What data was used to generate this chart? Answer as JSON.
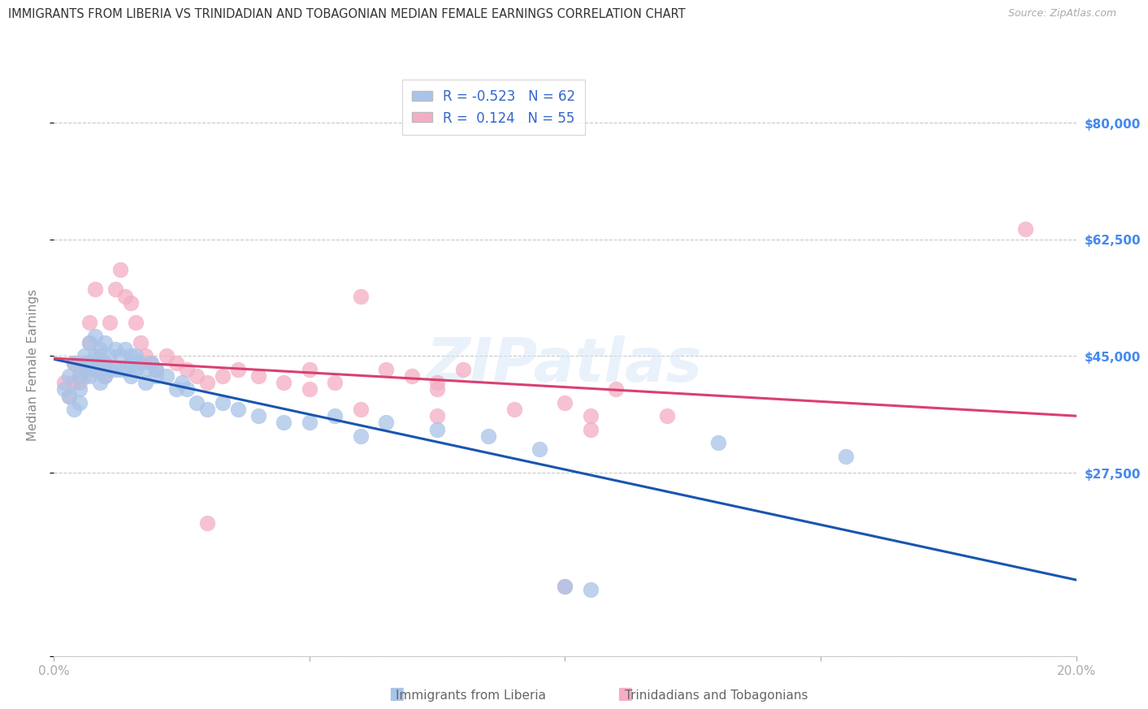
{
  "title": "IMMIGRANTS FROM LIBERIA VS TRINIDADIAN AND TOBAGONIAN MEDIAN FEMALE EARNINGS CORRELATION CHART",
  "source": "Source: ZipAtlas.com",
  "ylabel": "Median Female Earnings",
  "xlim": [
    0.0,
    0.2
  ],
  "ylim": [
    0,
    87500
  ],
  "yticks": [
    0,
    27500,
    45000,
    62500,
    80000
  ],
  "ytick_labels": [
    "",
    "$27,500",
    "$45,000",
    "$62,500",
    "$80,000"
  ],
  "xticks": [
    0.0,
    0.05,
    0.1,
    0.15,
    0.2
  ],
  "xtick_labels": [
    "0.0%",
    "",
    "",
    "",
    "20.0%"
  ],
  "series1_label": "Immigrants from Liberia",
  "series1_color": "#a8c4e8",
  "series1_edge_color": "#a8c4e8",
  "series1_line_color": "#1a55b0",
  "series1_R": "-0.523",
  "series1_N": "62",
  "series2_label": "Trinidadians and Tobagonians",
  "series2_color": "#f4aec4",
  "series2_edge_color": "#f4aec4",
  "series2_line_color": "#d94070",
  "series2_R": "0.124",
  "series2_N": "55",
  "watermark": "ZIPatlas",
  "background_color": "#ffffff",
  "grid_color": "#c8c8c8",
  "title_color": "#333333",
  "right_tick_color": "#4488ee",
  "blue_x": [
    0.002,
    0.003,
    0.003,
    0.004,
    0.004,
    0.005,
    0.005,
    0.005,
    0.006,
    0.006,
    0.007,
    0.007,
    0.007,
    0.008,
    0.008,
    0.008,
    0.009,
    0.009,
    0.009,
    0.01,
    0.01,
    0.01,
    0.011,
    0.011,
    0.012,
    0.012,
    0.013,
    0.013,
    0.014,
    0.014,
    0.015,
    0.015,
    0.015,
    0.016,
    0.016,
    0.017,
    0.018,
    0.018,
    0.019,
    0.02,
    0.02,
    0.022,
    0.024,
    0.025,
    0.026,
    0.028,
    0.03,
    0.033,
    0.036,
    0.04,
    0.045,
    0.05,
    0.055,
    0.06,
    0.065,
    0.075,
    0.085,
    0.095,
    0.13,
    0.155,
    0.1,
    0.105
  ],
  "blue_y": [
    40000,
    39000,
    42000,
    37000,
    44000,
    42000,
    40000,
    38000,
    45000,
    43000,
    47000,
    44000,
    42000,
    48000,
    45000,
    43000,
    46000,
    44000,
    41000,
    47000,
    44000,
    42000,
    45000,
    43000,
    46000,
    43000,
    45000,
    43000,
    46000,
    43000,
    45000,
    44000,
    42000,
    45000,
    43000,
    44000,
    43000,
    41000,
    44000,
    43000,
    42000,
    42000,
    40000,
    41000,
    40000,
    38000,
    37000,
    38000,
    37000,
    36000,
    35000,
    35000,
    36000,
    33000,
    35000,
    34000,
    33000,
    31000,
    32000,
    30000,
    10500,
    10000
  ],
  "pink_x": [
    0.002,
    0.003,
    0.004,
    0.004,
    0.005,
    0.005,
    0.006,
    0.006,
    0.007,
    0.007,
    0.008,
    0.008,
    0.009,
    0.009,
    0.01,
    0.01,
    0.011,
    0.012,
    0.013,
    0.014,
    0.015,
    0.016,
    0.017,
    0.018,
    0.019,
    0.02,
    0.022,
    0.024,
    0.026,
    0.028,
    0.03,
    0.033,
    0.036,
    0.04,
    0.045,
    0.05,
    0.055,
    0.06,
    0.065,
    0.07,
    0.075,
    0.08,
    0.05,
    0.06,
    0.075,
    0.09,
    0.1,
    0.11,
    0.12,
    0.075,
    0.03,
    0.105,
    0.105,
    0.19,
    0.1
  ],
  "pink_y": [
    41000,
    39000,
    44000,
    41000,
    43000,
    41000,
    44000,
    42000,
    50000,
    47000,
    43000,
    55000,
    45000,
    43000,
    44000,
    42000,
    50000,
    55000,
    58000,
    54000,
    53000,
    50000,
    47000,
    45000,
    44000,
    43000,
    45000,
    44000,
    43000,
    42000,
    41000,
    42000,
    43000,
    42000,
    41000,
    43000,
    41000,
    54000,
    43000,
    42000,
    41000,
    43000,
    40000,
    37000,
    40000,
    37000,
    38000,
    40000,
    36000,
    36000,
    20000,
    36000,
    34000,
    64000,
    10500
  ]
}
